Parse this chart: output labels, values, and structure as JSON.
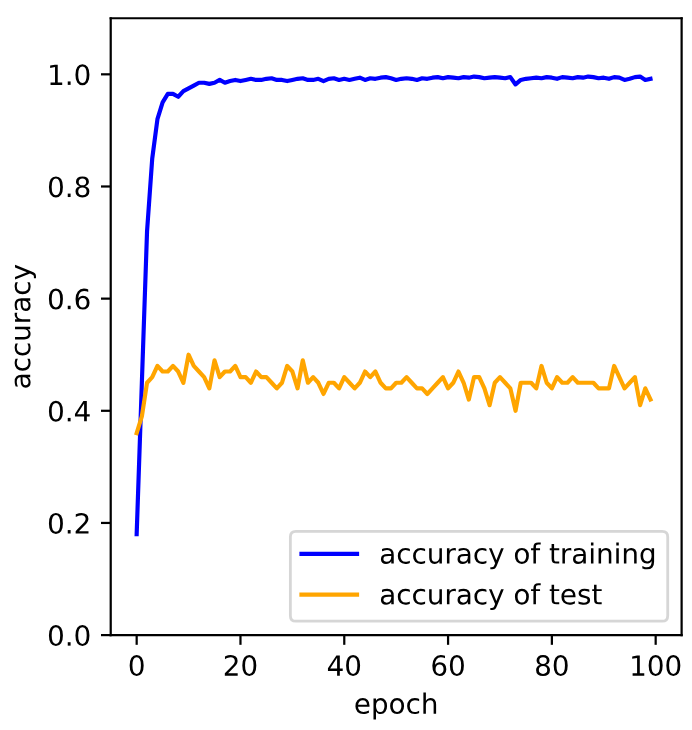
{
  "chart_data": {
    "type": "line",
    "xlabel": "epoch",
    "ylabel": "accuracy",
    "x": [
      0,
      1,
      2,
      3,
      4,
      5,
      6,
      7,
      8,
      9,
      10,
      11,
      12,
      13,
      14,
      15,
      16,
      17,
      18,
      19,
      20,
      21,
      22,
      23,
      24,
      25,
      26,
      27,
      28,
      29,
      30,
      31,
      32,
      33,
      34,
      35,
      36,
      37,
      38,
      39,
      40,
      41,
      42,
      43,
      44,
      45,
      46,
      47,
      48,
      49,
      50,
      51,
      52,
      53,
      54,
      55,
      56,
      57,
      58,
      59,
      60,
      61,
      62,
      63,
      64,
      65,
      66,
      67,
      68,
      69,
      70,
      71,
      72,
      73,
      74,
      75,
      76,
      77,
      78,
      79,
      80,
      81,
      82,
      83,
      84,
      85,
      86,
      87,
      88,
      89,
      90,
      91,
      92,
      93,
      94,
      95,
      96,
      97,
      98,
      99
    ],
    "series": [
      {
        "name": "accuracy of training",
        "color": "#0000ff",
        "values": [
          0.18,
          0.45,
          0.72,
          0.85,
          0.92,
          0.95,
          0.965,
          0.965,
          0.96,
          0.97,
          0.975,
          0.98,
          0.985,
          0.985,
          0.983,
          0.985,
          0.99,
          0.985,
          0.988,
          0.99,
          0.988,
          0.99,
          0.992,
          0.99,
          0.99,
          0.992,
          0.993,
          0.99,
          0.99,
          0.988,
          0.99,
          0.992,
          0.993,
          0.99,
          0.99,
          0.992,
          0.988,
          0.992,
          0.993,
          0.99,
          0.992,
          0.99,
          0.992,
          0.994,
          0.99,
          0.993,
          0.992,
          0.994,
          0.995,
          0.993,
          0.99,
          0.992,
          0.993,
          0.992,
          0.99,
          0.993,
          0.992,
          0.994,
          0.995,
          0.993,
          0.995,
          0.994,
          0.993,
          0.995,
          0.994,
          0.996,
          0.995,
          0.993,
          0.994,
          0.995,
          0.994,
          0.993,
          0.995,
          0.982,
          0.99,
          0.992,
          0.993,
          0.994,
          0.993,
          0.995,
          0.994,
          0.992,
          0.995,
          0.994,
          0.993,
          0.995,
          0.994,
          0.996,
          0.995,
          0.993,
          0.994,
          0.992,
          0.995,
          0.994,
          0.99,
          0.992,
          0.995,
          0.996,
          0.99,
          0.992
        ]
      },
      {
        "name": "accuracy of test",
        "color": "#ffa500",
        "values": [
          0.36,
          0.39,
          0.45,
          0.46,
          0.48,
          0.47,
          0.47,
          0.48,
          0.47,
          0.45,
          0.5,
          0.48,
          0.47,
          0.46,
          0.44,
          0.49,
          0.46,
          0.47,
          0.47,
          0.48,
          0.46,
          0.46,
          0.45,
          0.47,
          0.46,
          0.46,
          0.45,
          0.44,
          0.45,
          0.48,
          0.47,
          0.44,
          0.49,
          0.45,
          0.46,
          0.45,
          0.43,
          0.45,
          0.45,
          0.44,
          0.46,
          0.45,
          0.44,
          0.45,
          0.47,
          0.46,
          0.47,
          0.45,
          0.44,
          0.44,
          0.45,
          0.45,
          0.46,
          0.45,
          0.44,
          0.44,
          0.43,
          0.44,
          0.45,
          0.46,
          0.44,
          0.45,
          0.47,
          0.45,
          0.42,
          0.46,
          0.46,
          0.44,
          0.41,
          0.45,
          0.46,
          0.45,
          0.44,
          0.4,
          0.45,
          0.45,
          0.45,
          0.44,
          0.48,
          0.45,
          0.44,
          0.46,
          0.45,
          0.45,
          0.46,
          0.45,
          0.45,
          0.45,
          0.45,
          0.44,
          0.44,
          0.44,
          0.48,
          0.46,
          0.44,
          0.45,
          0.46,
          0.41,
          0.44,
          0.42
        ]
      }
    ],
    "xlim": [
      -5,
      105
    ],
    "xticks": [
      0,
      20,
      40,
      60,
      80,
      100
    ],
    "ylim": [
      0.0,
      1.1
    ],
    "yticks": [
      {
        "value": 0.0,
        "label": "0.0"
      },
      {
        "value": 0.2,
        "label": "0.2"
      },
      {
        "value": 0.4,
        "label": "0.4"
      },
      {
        "value": 0.6,
        "label": "0.6"
      },
      {
        "value": 0.8,
        "label": "0.8"
      },
      {
        "value": 1.0,
        "label": "1.0"
      }
    ],
    "legend": "lower right",
    "grid": false
  }
}
